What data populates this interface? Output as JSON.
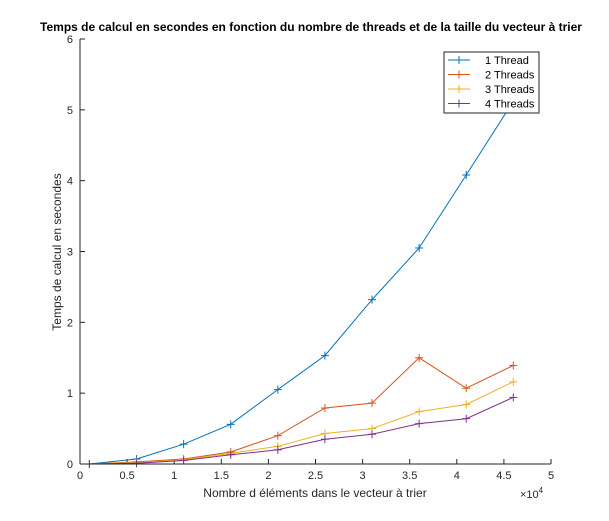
{
  "chart_data": {
    "type": "line",
    "title": "Temps de calcul en secondes en fonction du nombre de threads et de la taille du vecteur à trier",
    "xlabel": "Nombre d éléments dans le vecteur à trier",
    "ylabel": "Temps de calcul en secondes",
    "x_exponent": {
      "base": "×10",
      "exp": "4"
    },
    "xlim": [
      0,
      5
    ],
    "ylim": [
      0,
      6
    ],
    "xticks": [
      0,
      0.5,
      1,
      1.5,
      2,
      2.5,
      3,
      3.5,
      4,
      4.5,
      5
    ],
    "xtick_labels": [
      "0",
      "0.5",
      "1",
      "1.5",
      "2",
      "2.5",
      "3",
      "3.5",
      "4",
      "4.5",
      "5"
    ],
    "yticks": [
      0,
      1,
      2,
      3,
      4,
      5,
      6
    ],
    "ytick_labels": [
      "0",
      "1",
      "2",
      "3",
      "4",
      "5",
      "6"
    ],
    "legend_position": "top-right",
    "x": [
      0.1,
      0.6,
      1.1,
      1.6,
      2.1,
      2.6,
      3.1,
      3.6,
      4.1,
      4.6
    ],
    "series": [
      {
        "name": "1 Thread",
        "color": "#0072BD",
        "values": [
          0.0,
          0.07,
          0.28,
          0.56,
          1.05,
          1.53,
          2.32,
          3.05,
          4.08,
          5.12
        ]
      },
      {
        "name": "2 Threads",
        "color": "#D95319",
        "values": [
          0.0,
          0.03,
          0.07,
          0.17,
          0.4,
          0.79,
          0.86,
          1.5,
          1.07,
          1.39
        ]
      },
      {
        "name": "3 Threads",
        "color": "#EDB120",
        "values": [
          0.0,
          0.02,
          0.06,
          0.15,
          0.25,
          0.43,
          0.5,
          0.74,
          0.84,
          1.16
        ]
      },
      {
        "name": "4 Threads",
        "color": "#7E2F8E",
        "values": [
          0.0,
          0.01,
          0.05,
          0.13,
          0.2,
          0.35,
          0.42,
          0.57,
          0.64,
          0.94
        ]
      }
    ]
  }
}
